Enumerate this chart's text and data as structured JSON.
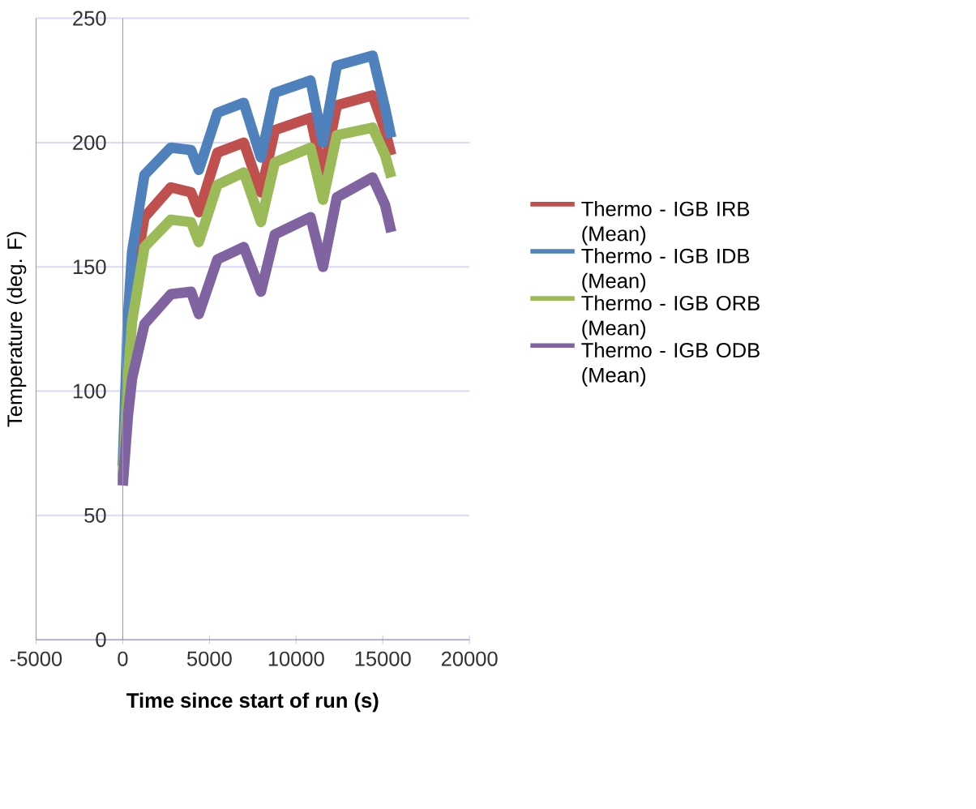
{
  "chart_data": {
    "type": "line",
    "xlabel": "Time since start of run (s)",
    "ylabel": "Temperature (deg. F)",
    "xlim": [
      -5000,
      20000
    ],
    "ylim": [
      0,
      250
    ],
    "xticks": [
      -5000,
      0,
      5000,
      10000,
      15000,
      20000
    ],
    "yticks": [
      0,
      50,
      100,
      150,
      200,
      250
    ],
    "grid": "y",
    "legend": "right",
    "x": [
      0,
      300,
      537,
      1253,
      2775,
      3940,
      4390,
      5460,
      6980,
      7970,
      8770,
      10830,
      11550,
      12350,
      14410,
      15130,
      15490
    ],
    "series": [
      {
        "name": "Thermo - IGB IRB (Mean)",
        "color": "#c0504d",
        "values": [
          65,
          115,
          140,
          170,
          182,
          180,
          172,
          196,
          200,
          180,
          205,
          210,
          187,
          215,
          219,
          205,
          195
        ]
      },
      {
        "name": "Thermo - IGB IDB (Mean)",
        "color": "#4f81bd",
        "values": [
          70,
          130,
          156,
          187,
          198,
          197,
          189,
          212,
          216,
          194,
          220,
          225,
          200,
          231,
          235,
          214,
          202
        ]
      },
      {
        "name": "Thermo - IGB ORB (Mean)",
        "color": "#9bbb59",
        "values": [
          63,
          105,
          128,
          158,
          169,
          168,
          160,
          183,
          188,
          168,
          192,
          198,
          177,
          203,
          206,
          195,
          186
        ]
      },
      {
        "name": "Thermo - IGB ODB (Mean)",
        "color": "#8064a2",
        "values": [
          62,
          90,
          105,
          127,
          139,
          140,
          131,
          153,
          158,
          140,
          163,
          170,
          150,
          178,
          186,
          175,
          164
        ]
      }
    ]
  }
}
